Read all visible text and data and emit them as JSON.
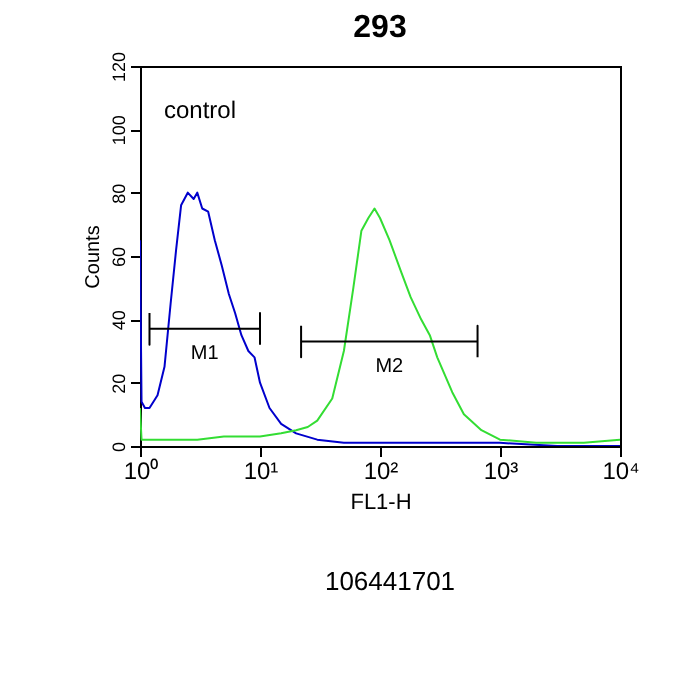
{
  "chart_data": {
    "type": "line",
    "title": "293",
    "xlabel": "FL1-H",
    "ylabel": "Counts",
    "log": "x",
    "grid": false,
    "legend": false,
    "marker": "none",
    "line_style": "solid",
    "xlim": [
      1,
      10000
    ],
    "xticks": [
      {
        "value": 1,
        "label": "10⁰"
      },
      {
        "value": 10,
        "label": "10¹"
      },
      {
        "value": 100,
        "label": "10²"
      },
      {
        "value": 1000,
        "label": "10³"
      },
      {
        "value": 10000,
        "label": "10⁴"
      }
    ],
    "ylim": [
      0,
      120
    ],
    "yticks": [
      0,
      20,
      40,
      60,
      80,
      100,
      120
    ],
    "series": [
      {
        "color": "#0000cc",
        "x": [
          1,
          1.03,
          1.1,
          1.2,
          1.4,
          1.6,
          1.8,
          2,
          2.2,
          2.5,
          2.8,
          3,
          3.3,
          3.7,
          4.2,
          4.8,
          5.5,
          6.2,
          7,
          8,
          9,
          10,
          12,
          15,
          20,
          30,
          50,
          100,
          300,
          1000,
          3000,
          10000
        ],
        "values": [
          65,
          14,
          12,
          12,
          16,
          25,
          45,
          62,
          76,
          80,
          78,
          80,
          75,
          74,
          65,
          57,
          48,
          42,
          35,
          30,
          28,
          20,
          12,
          7,
          4,
          2,
          1,
          1,
          1,
          1,
          0,
          0
        ]
      },
      {
        "color": "#33dd33",
        "x": [
          1,
          1.03,
          1.5,
          2,
          3,
          5,
          8,
          10,
          15,
          20,
          25,
          30,
          40,
          50,
          60,
          70,
          80,
          90,
          100,
          120,
          150,
          180,
          220,
          260,
          300,
          400,
          500,
          700,
          1000,
          2000,
          5000,
          10000
        ],
        "values": [
          12,
          2,
          2,
          2,
          2,
          3,
          3,
          3,
          4,
          5,
          6,
          8,
          15,
          30,
          50,
          68,
          72,
          75,
          72,
          65,
          55,
          47,
          40,
          35,
          28,
          17,
          10,
          5,
          2,
          1,
          1,
          2
        ]
      },
      {
        "name": "M1",
        "color": "#000000",
        "x": [
          1.2,
          1.2,
          1.2,
          10,
          10,
          10
        ],
        "values": [
          42,
          32,
          37,
          37,
          42,
          32
        ]
      },
      {
        "name": "M2",
        "color": "#000000",
        "x": [
          22,
          22,
          22,
          650,
          650,
          650
        ],
        "values": [
          38,
          28,
          33,
          33,
          38,
          28
        ]
      }
    ],
    "annotations": [
      "control",
      "106441701"
    ]
  }
}
